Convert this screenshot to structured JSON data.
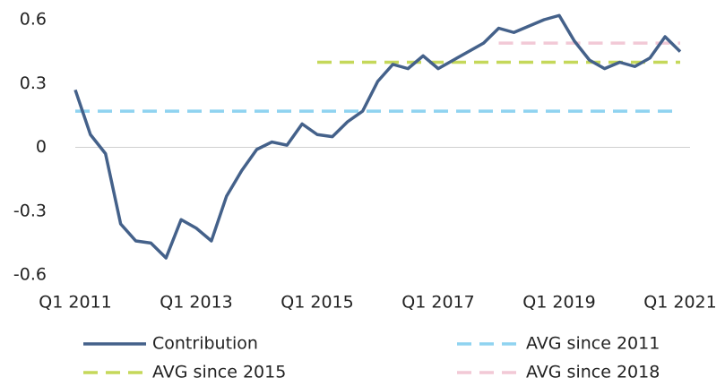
{
  "chart_data": {
    "type": "line",
    "categories": [
      "Q1 2011",
      null,
      null,
      null,
      null,
      null,
      null,
      null,
      "Q1 2013",
      null,
      null,
      null,
      null,
      null,
      null,
      null,
      "Q1 2015",
      null,
      null,
      null,
      null,
      null,
      null,
      null,
      "Q1 2017",
      null,
      null,
      null,
      null,
      null,
      null,
      null,
      "Q1 2019",
      null,
      null,
      null,
      null,
      null,
      null,
      null,
      "Q1 2021"
    ],
    "series": [
      {
        "name": "Contribution",
        "color": "#44618a",
        "dash": "solid",
        "values": [
          0.27,
          0.06,
          -0.03,
          -0.36,
          -0.44,
          -0.45,
          -0.52,
          -0.34,
          -0.38,
          -0.44,
          -0.23,
          -0.11,
          -0.01,
          0.025,
          0.01,
          0.11,
          0.06,
          0.05,
          0.12,
          0.17,
          0.31,
          0.39,
          0.37,
          0.43,
          0.37,
          0.41,
          0.45,
          0.49,
          0.56,
          0.54,
          0.57,
          0.6,
          0.62,
          0.5,
          0.41,
          0.37,
          0.4,
          0.38,
          0.42,
          0.52,
          0.45
        ]
      },
      {
        "name": "AVG since 2011",
        "color": "#8fd3f0",
        "dash": "dashed",
        "values": [
          0.17,
          0.17,
          0.17,
          0.17,
          0.17,
          0.17,
          0.17,
          0.17,
          0.17,
          0.17,
          0.17,
          0.17,
          0.17,
          0.17,
          0.17,
          0.17,
          0.17,
          0.17,
          0.17,
          0.17,
          0.17,
          0.17,
          0.17,
          0.17,
          0.17,
          0.17,
          0.17,
          0.17,
          0.17,
          0.17,
          0.17,
          0.17,
          0.17,
          0.17,
          0.17,
          0.17,
          0.17,
          0.17,
          0.17,
          0.17,
          0.17
        ]
      },
      {
        "name": "AVG since 2015",
        "color": "#c5d85a",
        "dash": "dashed",
        "values": [
          null,
          null,
          null,
          null,
          null,
          null,
          null,
          null,
          null,
          null,
          null,
          null,
          null,
          null,
          null,
          null,
          0.4,
          0.4,
          0.4,
          0.4,
          0.4,
          0.4,
          0.4,
          0.4,
          0.4,
          0.4,
          0.4,
          0.4,
          0.4,
          0.4,
          0.4,
          0.4,
          0.4,
          0.4,
          0.4,
          0.4,
          0.4,
          0.4,
          0.4,
          0.4,
          0.4
        ]
      },
      {
        "name": "AVG since 2018",
        "color": "#f2c9d6",
        "dash": "dashed",
        "values": [
          null,
          null,
          null,
          null,
          null,
          null,
          null,
          null,
          null,
          null,
          null,
          null,
          null,
          null,
          null,
          null,
          null,
          null,
          null,
          null,
          null,
          null,
          null,
          null,
          null,
          null,
          null,
          null,
          0.49,
          0.49,
          0.49,
          0.49,
          0.49,
          0.49,
          0.49,
          0.49,
          0.49,
          0.49,
          0.49,
          0.49,
          0.49
        ]
      }
    ],
    "ylim": [
      -0.6,
      0.6
    ],
    "yticks": [
      -0.6,
      -0.3,
      0,
      0.3,
      0.6
    ],
    "grid": false,
    "legend": "bottom"
  }
}
